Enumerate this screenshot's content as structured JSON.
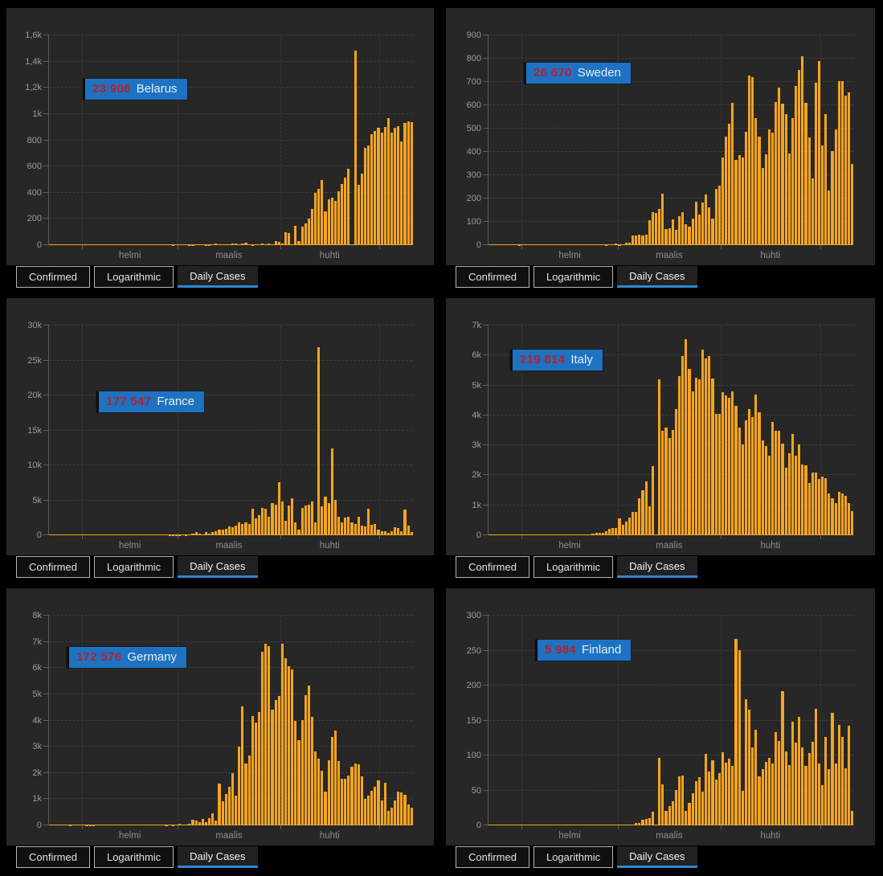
{
  "tabs": {
    "confirmed": "Confirmed",
    "logarithmic": "Logarithmic",
    "daily_cases": "Daily Cases"
  },
  "timeline": {
    "start_date": "2020-01-22",
    "end_date": "2020-05-10",
    "days": 110,
    "month_start_days": [
      10,
      39,
      70,
      100
    ],
    "month_label_days": [
      24.5,
      54.5,
      85
    ],
    "month_labels": [
      "helmi",
      "maalis",
      "huhti"
    ]
  },
  "colors": {
    "page_bg": "#000000",
    "panel_bg": "#272727",
    "bar": "#F6A41F",
    "badge_bg": "#1D72C2",
    "badge_number": "#B5202E",
    "badge_text": "#E9EFF4",
    "tab_active_underline": "#2F86D6",
    "axis_text": "#9C9C9C",
    "gridline": "#3D3D3D"
  },
  "chart_data": [
    {
      "type": "bar",
      "country": "Belarus",
      "total": "23 906",
      "y_max": 1600,
      "y_ticks": [
        "0",
        "200",
        "400",
        "600",
        "800",
        "1k",
        "1,2k",
        "1,4k",
        "1,6k"
      ],
      "x_tick_labels": [
        "helmi",
        "maalis",
        "huhti"
      ],
      "values": [
        0,
        0,
        0,
        0,
        0,
        0,
        0,
        0,
        0,
        0,
        0,
        0,
        0,
        0,
        0,
        0,
        0,
        0,
        0,
        0,
        0,
        0,
        0,
        0,
        0,
        0,
        0,
        0,
        0,
        0,
        0,
        0,
        0,
        0,
        0,
        0,
        0,
        1,
        0,
        0,
        0,
        0,
        3,
        2,
        0,
        0,
        0,
        3,
        3,
        0,
        15,
        6,
        0,
        8,
        9,
        15,
        15,
        0,
        12,
        17,
        7,
        2,
        5,
        5,
        10,
        8,
        10,
        0,
        28,
        22,
        11,
        97,
        94,
        6,
        150,
        30,
        140,
        163,
        205,
        273,
        398,
        430,
        497,
        255,
        350,
        362,
        340,
        410,
        463,
        514,
        580,
        0,
        1485,
        460,
        548,
        741,
        763,
        846,
        873,
        898,
        860,
        900,
        970,
        860,
        895,
        905,
        790,
        933,
        946,
        935
      ]
    },
    {
      "type": "bar",
      "country": "Sweden",
      "total": "26 670",
      "y_max": 900,
      "y_ticks": [
        "0",
        "100",
        "200",
        "300",
        "400",
        "500",
        "600",
        "700",
        "800",
        "900"
      ],
      "x_tick_labels": [
        "helmi",
        "maalis",
        "huhti"
      ],
      "values": [
        0,
        0,
        0,
        0,
        0,
        0,
        0,
        0,
        0,
        1,
        0,
        0,
        0,
        0,
        0,
        0,
        0,
        0,
        0,
        0,
        0,
        0,
        0,
        0,
        0,
        0,
        0,
        0,
        0,
        0,
        0,
        0,
        0,
        0,
        0,
        1,
        5,
        0,
        6,
        1,
        2,
        9,
        10,
        42,
        43,
        44,
        42,
        45,
        107,
        143,
        137,
        155,
        220,
        69,
        72,
        110,
        66,
        123,
        140,
        90,
        81,
        113,
        186,
        131,
        182,
        218,
        161,
        115,
        240,
        255,
        377,
        466,
        520,
        612,
        365,
        387,
        376,
        487,
        726,
        722,
        544,
        466,
        332,
        390,
        497,
        482,
        613,
        676,
        606,
        563,
        392,
        545,
        682,
        751,
        812,
        610,
        463,
        286,
        695,
        790,
        428,
        562,
        235,
        404,
        495,
        702,
        705,
        642,
        656,
        348
      ]
    },
    {
      "type": "bar",
      "country": "France",
      "total": "177 547",
      "y_max": 30000,
      "y_ticks": [
        "0",
        "5k",
        "10k",
        "15k",
        "20k",
        "25k",
        "30k"
      ],
      "x_tick_labels": [
        "helmi",
        "maalis",
        "huhti"
      ],
      "values": [
        0,
        0,
        2,
        1,
        0,
        0,
        1,
        1,
        0,
        1,
        0,
        0,
        0,
        0,
        0,
        0,
        0,
        5,
        0,
        0,
        0,
        0,
        0,
        0,
        1,
        0,
        0,
        0,
        0,
        0,
        0,
        0,
        0,
        0,
        1,
        2,
        20,
        19,
        43,
        30,
        61,
        13,
        92,
        276,
        424,
        286,
        103,
        410,
        286,
        497,
        595,
        785,
        838,
        924,
        1210,
        1097,
        1404,
        1861,
        1617,
        1847,
        1559,
        3838,
        2448,
        2929,
        3922,
        3809,
        2599,
        4611,
        4376,
        7578,
        4861,
        2116,
        4267,
        5233,
        1873,
        833,
        3912,
        4287,
        4342,
        4785,
        1873,
        26849,
        4188,
        5497,
        4560,
        12461,
        5066,
        2641,
        1785,
        2489,
        2667,
        1827,
        1653,
        2644,
        1369,
        1242,
        3764,
        1537,
        1607,
        758,
        604,
        576,
        297,
        573,
        1104,
        1037,
        600,
        3629,
        1343,
        456
      ]
    },
    {
      "type": "bar",
      "country": "Italy",
      "total": "219 814",
      "y_max": 7000,
      "y_ticks": [
        "0",
        "1k",
        "2k",
        "3k",
        "4k",
        "5k",
        "6k",
        "7k"
      ],
      "x_tick_labels": [
        "helmi",
        "maalis",
        "huhti"
      ],
      "values": [
        0,
        0,
        0,
        0,
        0,
        0,
        0,
        0,
        0,
        2,
        0,
        0,
        0,
        0,
        0,
        0,
        0,
        0,
        0,
        0,
        0,
        0,
        0,
        0,
        0,
        0,
        0,
        0,
        0,
        0,
        17,
        42,
        93,
        74,
        93,
        131,
        202,
        233,
        240,
        566,
        342,
        466,
        587,
        769,
        778,
        1247,
        1492,
        1797,
        977,
        2313,
        0,
        5198,
        3497,
        3590,
        3233,
        3526,
        4207,
        5322,
        5986,
        6557,
        5560,
        4789,
        5249,
        5210,
        6203,
        5909,
        5974,
        5217,
        4050,
        4053,
        4782,
        4668,
        4585,
        4805,
        4316,
        3599,
        3039,
        3836,
        4204,
        3951,
        4694,
        4092,
        3153,
        2972,
        2667,
        3786,
        3493,
        3491,
        3047,
        2256,
        2729,
        3370,
        2646,
        3021,
        2357,
        2324,
        1739,
        2091,
        2086,
        1872,
        1965,
        1900,
        1389,
        1221,
        1075,
        1444,
        1401,
        1327,
        1083,
        802
      ]
    },
    {
      "type": "bar",
      "country": "Germany",
      "total": "172 576",
      "y_max": 8000,
      "y_ticks": [
        "0",
        "1k",
        "2k",
        "3k",
        "4k",
        "5k",
        "6k",
        "7k",
        "8k"
      ],
      "x_tick_labels": [
        "helmi",
        "maalis",
        "huhti"
      ],
      "values": [
        0,
        0,
        0,
        0,
        0,
        1,
        3,
        0,
        0,
        1,
        2,
        3,
        3,
        3,
        2,
        0,
        0,
        0,
        0,
        0,
        0,
        0,
        0,
        0,
        0,
        0,
        0,
        0,
        0,
        0,
        0,
        0,
        1,
        0,
        1,
        9,
        27,
        11,
        32,
        51,
        28,
        39,
        66,
        220,
        188,
        129,
        241,
        136,
        281,
        451,
        170,
        1597,
        910,
        1210,
        1477,
        1985,
        1144,
        2993,
        4528,
        2365,
        2660,
        4183,
        3930,
        4337,
        6615,
        6933,
        6824,
        4400,
        4790,
        4923,
        6922,
        6365,
        6082,
        5936,
        3990,
        3251,
        4003,
        4974,
        5323,
        4133,
        2821,
        2537,
        2082,
        1287,
        2486,
        3380,
        3609,
        2458,
        1775,
        1785,
        1887,
        2237,
        2352,
        2337,
        1879,
        1018,
        1144,
        1304,
        1478,
        1705,
        945,
        1639,
        537,
        685,
        947,
        1284,
        1251,
        1158,
        800,
        667
      ]
    },
    {
      "type": "bar",
      "country": "Finland",
      "total": "5 984",
      "y_max": 300,
      "y_ticks": [
        "0",
        "50",
        "100",
        "150",
        "200",
        "250",
        "300"
      ],
      "x_tick_labels": [
        "helmi",
        "maalis",
        "huhti"
      ],
      "values": [
        0,
        0,
        0,
        0,
        0,
        0,
        0,
        1,
        0,
        0,
        0,
        0,
        0,
        0,
        0,
        0,
        0,
        0,
        0,
        0,
        0,
        0,
        0,
        0,
        0,
        0,
        0,
        0,
        0,
        0,
        0,
        0,
        0,
        0,
        0,
        1,
        1,
        0,
        0,
        0,
        1,
        0,
        1,
        1,
        4,
        4,
        8,
        9,
        10,
        19,
        0,
        97,
        59,
        21,
        28,
        34,
        51,
        70,
        71,
        21,
        32,
        46,
        63,
        69,
        48,
        102,
        77,
        93,
        66,
        75,
        105,
        90,
        95,
        85,
        267,
        251,
        50,
        180,
        165,
        112,
        137,
        70,
        80,
        91,
        97,
        88,
        133,
        121,
        192,
        106,
        86,
        148,
        118,
        155,
        112,
        85,
        103,
        120,
        167,
        89,
        57,
        126,
        80,
        161,
        89,
        144,
        126,
        82,
        143,
        21
      ]
    }
  ]
}
